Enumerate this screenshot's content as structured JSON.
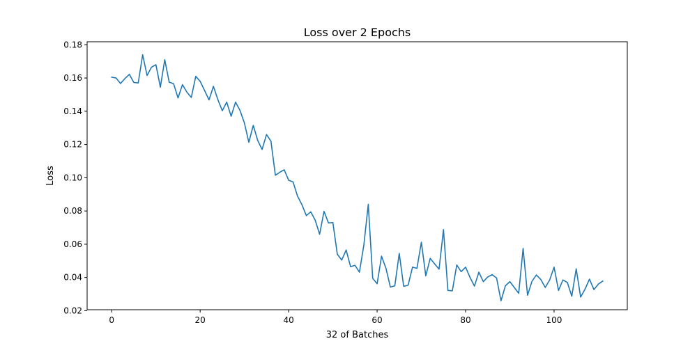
{
  "chart_data": {
    "type": "line",
    "title": "Loss over 2  Epochs",
    "xlabel": "32 of Batches",
    "ylabel": "Loss",
    "xlim": [
      -5.55,
      116.55
    ],
    "ylim": [
      0.0206,
      0.1818
    ],
    "xticks": [
      0,
      20,
      40,
      60,
      80,
      100
    ],
    "yticks": [
      0.02,
      0.04,
      0.06,
      0.08,
      0.1,
      0.12,
      0.14,
      0.16,
      0.18
    ],
    "ytick_labels": [
      "0.02",
      "0.04",
      "0.06",
      "0.08",
      "0.10",
      "0.12",
      "0.14",
      "0.16",
      "0.18"
    ],
    "grid": false,
    "line_color": "#1f77b4",
    "series": [
      {
        "values": [
          0.1605,
          0.16,
          0.1567,
          0.1597,
          0.1622,
          0.1573,
          0.157,
          0.174,
          0.1615,
          0.1665,
          0.168,
          0.1545,
          0.171,
          0.1575,
          0.1565,
          0.148,
          0.156,
          0.1515,
          0.1483,
          0.161,
          0.158,
          0.1525,
          0.1468,
          0.155,
          0.147,
          0.1403,
          0.1455,
          0.137,
          0.1455,
          0.1405,
          0.133,
          0.1213,
          0.1315,
          0.1225,
          0.117,
          0.126,
          0.122,
          0.1015,
          0.1033,
          0.1048,
          0.0985,
          0.0975,
          0.089,
          0.0838,
          0.0772,
          0.0795,
          0.0745,
          0.066,
          0.0798,
          0.0728,
          0.073,
          0.054,
          0.0505,
          0.0565,
          0.0465,
          0.0473,
          0.0432,
          0.0595,
          0.084,
          0.0395,
          0.0362,
          0.0528,
          0.0455,
          0.0342,
          0.035,
          0.0545,
          0.0347,
          0.0353,
          0.0462,
          0.0455,
          0.0612,
          0.041,
          0.0515,
          0.0482,
          0.045,
          0.0688,
          0.0322,
          0.032,
          0.0475,
          0.0435,
          0.0462,
          0.04,
          0.0348,
          0.0432,
          0.0375,
          0.0403,
          0.0417,
          0.0397,
          0.026,
          0.035,
          0.0375,
          0.034,
          0.0305,
          0.0575,
          0.0293,
          0.0377,
          0.0415,
          0.0388,
          0.034,
          0.0385,
          0.0462,
          0.0322,
          0.0385,
          0.037,
          0.0287,
          0.0452,
          0.0282,
          0.033,
          0.039,
          0.0327,
          0.036,
          0.0378
        ]
      }
    ]
  }
}
